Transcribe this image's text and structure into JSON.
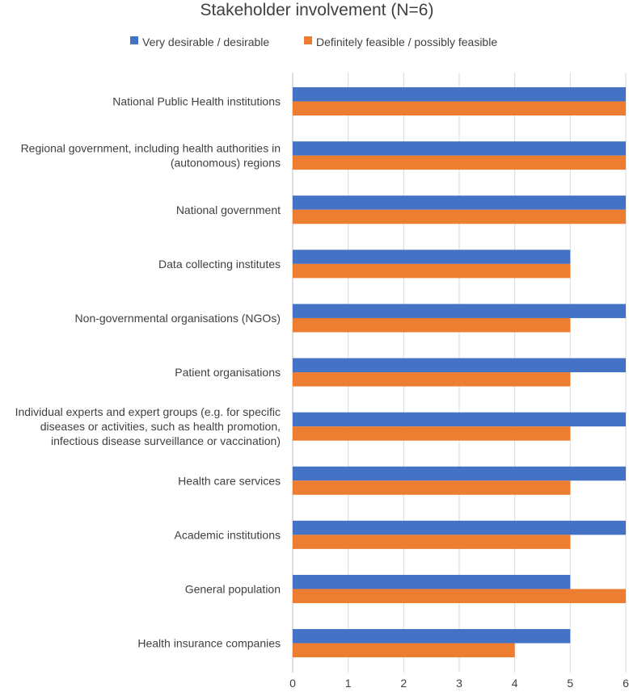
{
  "chart_data": {
    "type": "bar",
    "orientation": "horizontal",
    "title": "Stakeholder involvement (N=6)",
    "legend_position": "top",
    "grid": true,
    "xlim": [
      0,
      6
    ],
    "xticks": [
      "0",
      "1",
      "2",
      "3",
      "4",
      "5",
      "6"
    ],
    "categories": [
      [
        "National Public Health institutions"
      ],
      [
        "Regional government, including health authorities in",
        "(autonomous) regions"
      ],
      [
        "National government"
      ],
      [
        "Data collecting institutes"
      ],
      [
        "Non-governmental organisations (NGOs)"
      ],
      [
        "Patient organisations"
      ],
      [
        "Individual experts and expert groups (e.g. for specific",
        "diseases or activities, such as health promotion,",
        "infectious disease surveillance or vaccination)"
      ],
      [
        "Health care services"
      ],
      [
        "Academic institutions"
      ],
      [
        "General population"
      ],
      [
        "Health insurance companies"
      ]
    ],
    "series": [
      {
        "name": "Very desirable / desirable",
        "color": "#4472C4",
        "values": [
          6,
          6,
          6,
          5,
          6,
          6,
          6,
          6,
          6,
          5,
          5
        ]
      },
      {
        "name": "Definitely feasible / possibly feasible",
        "color": "#ED7D31",
        "values": [
          6,
          6,
          6,
          5,
          5,
          5,
          5,
          5,
          5,
          6,
          4
        ]
      }
    ]
  }
}
